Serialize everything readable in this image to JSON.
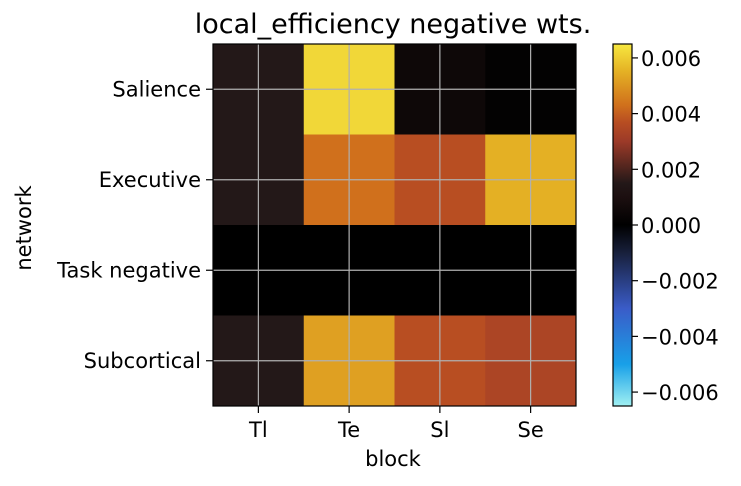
{
  "chart_data": {
    "type": "heatmap",
    "title": "local_efficiency negative wts.",
    "xlabel": "block",
    "ylabel": "network",
    "x_categories": [
      "Tl",
      "Te",
      "Sl",
      "Se"
    ],
    "y_categories": [
      "Salience",
      "Executive",
      "Task negative",
      "Subcortical"
    ],
    "values": [
      [
        0.0015,
        0.0062,
        0.0005,
        0.0001
      ],
      [
        0.0015,
        0.0043,
        0.0037,
        0.0055
      ],
      [
        0.0,
        0.0,
        0.0,
        0.0
      ],
      [
        0.0015,
        0.0052,
        0.0037,
        0.0034
      ]
    ],
    "colorbar": {
      "min": -0.0065,
      "max": 0.0065,
      "ticks": [
        0.006,
        0.004,
        0.002,
        0.0,
        -0.002,
        -0.004,
        -0.006
      ],
      "tick_labels": [
        "0.006",
        "0.004",
        "0.002",
        "0.000",
        "−0.002",
        "−0.004",
        "−0.006"
      ],
      "colormap": "diverging cyan-blue-black-red-yellow",
      "stops": [
        {
          "v": -0.0065,
          "c": "#a0f0f2"
        },
        {
          "v": -0.005,
          "c": "#18a0e8"
        },
        {
          "v": -0.003,
          "c": "#3a5cc8"
        },
        {
          "v": -0.001,
          "c": "#18203c"
        },
        {
          "v": 0.0,
          "c": "#000000"
        },
        {
          "v": 0.001,
          "c": "#1c0f10"
        },
        {
          "v": 0.0015,
          "c": "#231818"
        },
        {
          "v": 0.003,
          "c": "#9c3a28"
        },
        {
          "v": 0.0037,
          "c": "#b84e22"
        },
        {
          "v": 0.0043,
          "c": "#d0701c"
        },
        {
          "v": 0.0055,
          "c": "#e4b024"
        },
        {
          "v": 0.0065,
          "c": "#f7e840"
        }
      ]
    },
    "grid": true,
    "grid_color": "#b0b0b0",
    "legend": "colorbar-right"
  }
}
